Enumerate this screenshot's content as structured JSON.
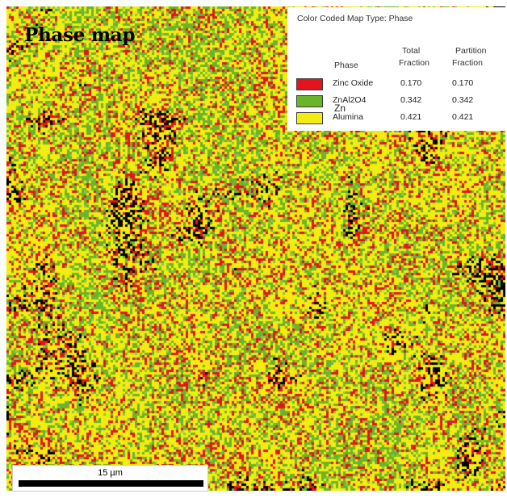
{
  "title": "Phase map",
  "legend": {
    "title": "Color Coded Map Type: Phase",
    "header_total_line1": "Total",
    "header_total_line2": "Fraction",
    "header_partition_line1": "Partition",
    "header_partition_line2": "Fraction",
    "header_phase": "Phase",
    "rows": [
      {
        "name": "Zinc Oxide",
        "total": "0.170",
        "partition": "0.170",
        "color": "#e4141e"
      },
      {
        "name": "ZnAl2O4",
        "total": "0.342",
        "partition": "0.342",
        "color": "#6ab42a"
      },
      {
        "name": "Alumina",
        "total": "0.421",
        "partition": "0.421",
        "color": "#f2ec10"
      }
    ],
    "zn_note": "Zn"
  },
  "scale_bar": {
    "label": "15 µm"
  },
  "colors": {
    "zinc_oxide": "#e4141e",
    "znal2o4": "#6ab42a",
    "alumina": "#f2ec10",
    "unindexed": "#000000"
  }
}
